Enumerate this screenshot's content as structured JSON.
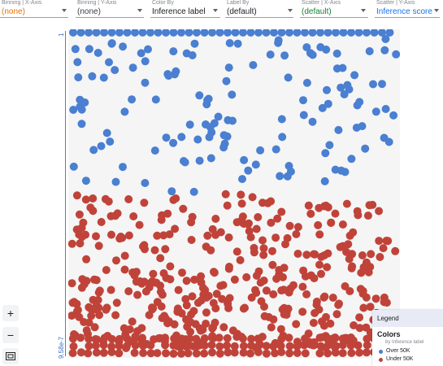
{
  "toolbar": {
    "controls": [
      {
        "label": "Binning | X-Axis",
        "value": "(none)",
        "value_color": "#e8710a"
      },
      {
        "label": "Binning | Y-Axis",
        "value": "(none)",
        "value_color": "#3c4043"
      },
      {
        "label": "Color By",
        "value": "Inference label",
        "value_color": "#202124"
      },
      {
        "label": "Label By",
        "value": "(default)",
        "value_color": "#202124"
      },
      {
        "label": "Scatter | X-Axis",
        "value": "(default)",
        "value_color": "#188038"
      },
      {
        "label": "Scatter | Y-Axis",
        "value": "Inference score",
        "value_color": "#1a73e8"
      }
    ]
  },
  "axis": {
    "y_top_label": "1",
    "y_bottom_label": "9.58e-7"
  },
  "zoom": {
    "in_label": "+",
    "out_label": "−",
    "fit_icon": "fit-screen-icon"
  },
  "legend": {
    "header": "Legend",
    "title": "Colors",
    "subtitle": "by Inference label",
    "items": [
      {
        "label": "Over 50K",
        "color": "#4a7fd1"
      },
      {
        "label": "Under 50K",
        "color": "#c0433a"
      }
    ]
  },
  "chart_data": {
    "type": "scatter",
    "title": "",
    "xlabel": "",
    "ylabel": "Inference score",
    "ylim": [
      9.58e-07,
      1
    ],
    "grid": false,
    "legend_placement": "bottom-right",
    "series": [
      {
        "name": "Over 50K",
        "color": "#4a7fd1",
        "y_range": [
          0.5,
          1
        ],
        "approx_count": 230
      },
      {
        "name": "Under 50K",
        "color": "#c0433a",
        "y_range": [
          9.58e-07,
          0.5
        ],
        "approx_count": 560
      }
    ]
  }
}
